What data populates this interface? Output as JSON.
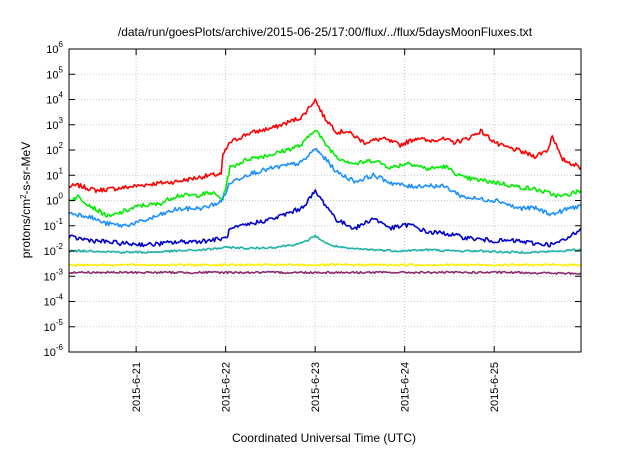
{
  "chart_data": {
    "type": "line",
    "title": "/data/run/goesPlots/archive/2015-06-25/17:00/flux/../flux/5daysMoonFluxes.txt",
    "xlabel": "Coordinated Universal Time (UTC)",
    "ylabel_parts": [
      "protons/cm",
      "2",
      "-s-sr-MeV"
    ],
    "yscale": "log",
    "ylim_exp": [
      -6,
      6
    ],
    "ytick_exponents": [
      "-6",
      "-5",
      "-4",
      "-3",
      "-2",
      "-1",
      "0",
      "1",
      "2",
      "3",
      "4",
      "5",
      "6"
    ],
    "ytick_base": "10",
    "xlim_days": [
      0,
      5.72
    ],
    "xticks": [
      {
        "label": "2015-6-21",
        "day": 0.75
      },
      {
        "label": "2015-6-22",
        "day": 1.75
      },
      {
        "label": "2015-6-23",
        "day": 2.75
      },
      {
        "label": "2015-6-24",
        "day": 3.75
      },
      {
        "label": "2015-6-25",
        "day": 4.75
      }
    ],
    "grid": true,
    "series": [
      {
        "color": "#ff0000",
        "points": [
          [
            0,
            0.55
          ],
          [
            0.1,
            0.6
          ],
          [
            0.3,
            0.4
          ],
          [
            0.6,
            0.5
          ],
          [
            0.9,
            0.65
          ],
          [
            1.2,
            0.75
          ],
          [
            1.5,
            0.95
          ],
          [
            1.7,
            1.05
          ],
          [
            1.72,
            1.8
          ],
          [
            1.8,
            2.3
          ],
          [
            2.0,
            2.65
          ],
          [
            2.3,
            2.9
          ],
          [
            2.6,
            3.3
          ],
          [
            2.75,
            4.0
          ],
          [
            2.85,
            3.3
          ],
          [
            3.0,
            2.7
          ],
          [
            3.1,
            2.75
          ],
          [
            3.3,
            2.3
          ],
          [
            3.5,
            2.45
          ],
          [
            3.7,
            2.2
          ],
          [
            3.9,
            2.5
          ],
          [
            4.0,
            2.35
          ],
          [
            4.15,
            2.45
          ],
          [
            4.3,
            2.3
          ],
          [
            4.45,
            2.45
          ],
          [
            4.6,
            2.75
          ],
          [
            4.8,
            2.2
          ],
          [
            5.0,
            2.0
          ],
          [
            5.2,
            1.75
          ],
          [
            5.35,
            2.0
          ],
          [
            5.4,
            2.6
          ],
          [
            5.5,
            1.65
          ],
          [
            5.72,
            1.3
          ]
        ]
      },
      {
        "color": "#00ee00",
        "points": [
          [
            0,
            0.0
          ],
          [
            0.1,
            0.15
          ],
          [
            0.3,
            -0.35
          ],
          [
            0.45,
            -0.65
          ],
          [
            0.6,
            -0.45
          ],
          [
            0.8,
            -0.2
          ],
          [
            1.0,
            -0.15
          ],
          [
            1.2,
            0.2
          ],
          [
            1.4,
            0.2
          ],
          [
            1.6,
            0.3
          ],
          [
            1.72,
            0.05
          ],
          [
            1.8,
            1.3
          ],
          [
            2.0,
            1.65
          ],
          [
            2.3,
            1.85
          ],
          [
            2.6,
            2.2
          ],
          [
            2.75,
            2.85
          ],
          [
            2.85,
            2.3
          ],
          [
            3.0,
            1.7
          ],
          [
            3.2,
            1.45
          ],
          [
            3.4,
            1.6
          ],
          [
            3.6,
            1.3
          ],
          [
            3.8,
            1.5
          ],
          [
            4.0,
            1.25
          ],
          [
            4.2,
            1.35
          ],
          [
            4.4,
            0.9
          ],
          [
            4.6,
            0.8
          ],
          [
            4.8,
            0.7
          ],
          [
            5.0,
            0.55
          ],
          [
            5.2,
            0.45
          ],
          [
            5.4,
            0.25
          ],
          [
            5.5,
            0.15
          ],
          [
            5.72,
            0.4
          ]
        ]
      },
      {
        "color": "#1e90ff",
        "points": [
          [
            0,
            -0.5
          ],
          [
            0.2,
            -0.6
          ],
          [
            0.4,
            -0.9
          ],
          [
            0.6,
            -1.0
          ],
          [
            0.8,
            -0.85
          ],
          [
            1.0,
            -0.6
          ],
          [
            1.2,
            -0.35
          ],
          [
            1.5,
            -0.3
          ],
          [
            1.7,
            -0.05
          ],
          [
            1.8,
            0.7
          ],
          [
            2.0,
            1.05
          ],
          [
            2.3,
            1.3
          ],
          [
            2.6,
            1.5
          ],
          [
            2.75,
            2.05
          ],
          [
            2.85,
            1.7
          ],
          [
            3.0,
            1.1
          ],
          [
            3.2,
            0.75
          ],
          [
            3.4,
            1.0
          ],
          [
            3.6,
            0.7
          ],
          [
            3.8,
            0.55
          ],
          [
            4.0,
            0.6
          ],
          [
            4.2,
            0.55
          ],
          [
            4.4,
            0.15
          ],
          [
            4.6,
            0.05
          ],
          [
            4.8,
            0.0
          ],
          [
            5.0,
            -0.3
          ],
          [
            5.2,
            -0.3
          ],
          [
            5.4,
            -0.55
          ],
          [
            5.6,
            -0.3
          ],
          [
            5.72,
            -0.2
          ]
        ]
      },
      {
        "color": "#0000cd",
        "points": [
          [
            0,
            -1.45
          ],
          [
            0.3,
            -1.6
          ],
          [
            0.6,
            -1.7
          ],
          [
            0.9,
            -1.75
          ],
          [
            1.2,
            -1.65
          ],
          [
            1.5,
            -1.6
          ],
          [
            1.75,
            -1.5
          ],
          [
            1.8,
            -1.15
          ],
          [
            2.0,
            -0.95
          ],
          [
            2.3,
            -0.7
          ],
          [
            2.6,
            -0.3
          ],
          [
            2.75,
            0.35
          ],
          [
            2.85,
            -0.1
          ],
          [
            3.0,
            -0.8
          ],
          [
            3.2,
            -1.1
          ],
          [
            3.4,
            -0.7
          ],
          [
            3.6,
            -1.1
          ],
          [
            3.8,
            -0.95
          ],
          [
            4.0,
            -1.25
          ],
          [
            4.2,
            -1.3
          ],
          [
            4.4,
            -1.45
          ],
          [
            4.6,
            -1.55
          ],
          [
            4.8,
            -1.6
          ],
          [
            5.0,
            -1.6
          ],
          [
            5.2,
            -1.7
          ],
          [
            5.4,
            -1.75
          ],
          [
            5.55,
            -1.55
          ],
          [
            5.72,
            -1.1
          ]
        ]
      },
      {
        "color": "#20b2aa",
        "points": [
          [
            0,
            -2.0
          ],
          [
            0.3,
            -2.0
          ],
          [
            0.6,
            -2.05
          ],
          [
            0.9,
            -2.05
          ],
          [
            1.2,
            -2.0
          ],
          [
            1.5,
            -1.95
          ],
          [
            1.8,
            -1.85
          ],
          [
            2.0,
            -1.9
          ],
          [
            2.3,
            -1.85
          ],
          [
            2.6,
            -1.7
          ],
          [
            2.75,
            -1.4
          ],
          [
            2.9,
            -1.75
          ],
          [
            3.1,
            -1.9
          ],
          [
            3.4,
            -1.95
          ],
          [
            3.7,
            -2.0
          ],
          [
            4.0,
            -1.95
          ],
          [
            4.3,
            -2.0
          ],
          [
            4.6,
            -2.0
          ],
          [
            4.9,
            -2.05
          ],
          [
            5.2,
            -2.05
          ],
          [
            5.5,
            -2.0
          ],
          [
            5.72,
            -1.95
          ]
        ]
      },
      {
        "color": "#ffee00",
        "points": [
          [
            0,
            -2.55
          ],
          [
            1.0,
            -2.55
          ],
          [
            2.0,
            -2.55
          ],
          [
            3.0,
            -2.55
          ],
          [
            4.0,
            -2.55
          ],
          [
            5.0,
            -2.55
          ],
          [
            5.72,
            -2.55
          ]
        ]
      },
      {
        "color": "#8b2c6f",
        "points": [
          [
            0,
            -2.85
          ],
          [
            0.5,
            -2.85
          ],
          [
            1.0,
            -2.85
          ],
          [
            1.5,
            -2.85
          ],
          [
            2.0,
            -2.85
          ],
          [
            2.5,
            -2.85
          ],
          [
            3.0,
            -2.85
          ],
          [
            3.5,
            -2.85
          ],
          [
            4.0,
            -2.85
          ],
          [
            4.5,
            -2.85
          ],
          [
            5.0,
            -2.85
          ],
          [
            5.72,
            -2.9
          ]
        ]
      }
    ]
  }
}
